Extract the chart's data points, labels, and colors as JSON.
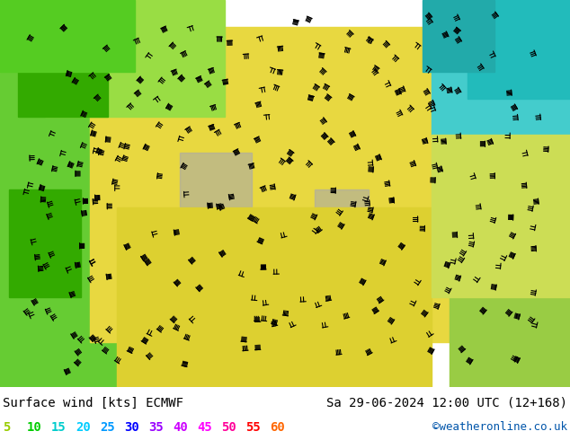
{
  "title_left": "Surface wind [kts] ECMWF",
  "title_right": "Sa 29-06-2024 12:00 UTC (12+168)",
  "credit": "©weatheronline.co.uk",
  "legend_values": [
    5,
    10,
    15,
    20,
    25,
    30,
    35,
    40,
    45,
    50,
    55,
    60
  ],
  "legend_colors": [
    "#99cc00",
    "#00cc00",
    "#00cccc",
    "#00ccff",
    "#0099ff",
    "#0000ff",
    "#9900ff",
    "#cc00ff",
    "#ff00ff",
    "#ff0099",
    "#ff0000",
    "#ff6600"
  ],
  "bg_color": "#ffffff",
  "map_bg": "#f0e88a",
  "bottom_bar_height": 0.1,
  "fig_width": 6.34,
  "fig_height": 4.9,
  "dpi": 100
}
